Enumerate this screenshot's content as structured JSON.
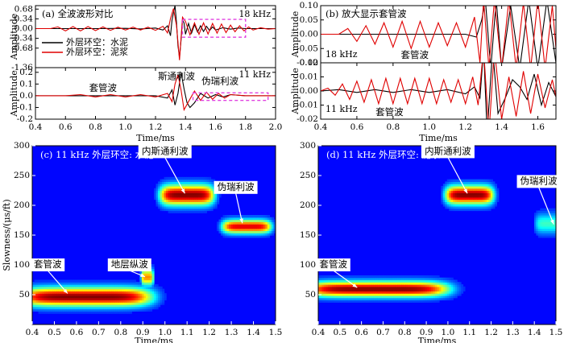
{
  "chart_data": [
    {
      "id": "a_top",
      "type": "line",
      "panel_label": "(a) 全波波形对比",
      "freq_label": "18 kHz",
      "ylabel": "Amplitude",
      "xlim": [
        0.4,
        2.0
      ],
      "ylim": [
        -1.36,
        0.8
      ],
      "yticks": [
        {
          "v": 0.68,
          "t": "0.68"
        },
        {
          "v": 0.34,
          "t": "0.34"
        },
        {
          "v": 0.0,
          "t": "0.00"
        },
        {
          "v": -0.34,
          "t": "-0.34"
        },
        {
          "v": -0.68,
          "t": "-0.68"
        },
        {
          "v": -1.36,
          "t": "-1.36"
        }
      ],
      "legend": [
        {
          "name": "外层环空：水泥",
          "color": "#000000"
        },
        {
          "name": "外层环空：泥浆",
          "color": "#e00000"
        }
      ],
      "highlight_box": {
        "x": [
          1.38,
          1.8
        ],
        "y": [
          -0.3,
          0.32
        ],
        "color": "#e040e0"
      },
      "series": [
        {
          "name": "外层环空：水泥",
          "color": "#000000",
          "x": [
            0.4,
            0.6,
            0.8,
            1.0,
            1.1,
            1.2,
            1.25,
            1.28,
            1.3,
            1.31,
            1.32,
            1.33,
            1.34,
            1.35,
            1.36,
            1.37,
            1.38,
            1.39,
            1.4,
            1.42,
            1.44,
            1.46,
            1.48,
            1.5,
            1.52,
            1.54,
            1.56,
            1.58,
            1.6,
            1.65,
            1.7,
            1.75,
            1.8,
            1.9,
            2.0
          ],
          "y": [
            0.0,
            0.0,
            0.0,
            0.01,
            -0.01,
            0.02,
            -0.05,
            0.1,
            -0.25,
            0.3,
            0.55,
            0.8,
            0.2,
            -0.6,
            -1.0,
            -0.4,
            0.3,
            0.2,
            -0.2,
            0.18,
            -0.16,
            0.14,
            -0.12,
            0.1,
            -0.1,
            0.08,
            -0.07,
            0.06,
            -0.05,
            0.03,
            -0.02,
            0.02,
            0.0,
            0.0,
            0.0
          ]
        },
        {
          "name": "外层环空：泥浆",
          "color": "#e00000",
          "x": [
            0.4,
            0.5,
            0.55,
            0.6,
            0.65,
            0.7,
            0.75,
            0.8,
            0.85,
            0.9,
            0.95,
            1.0,
            1.05,
            1.1,
            1.15,
            1.2,
            1.25,
            1.28,
            1.3,
            1.32,
            1.34,
            1.36,
            1.38,
            1.4,
            1.43,
            1.46,
            1.49,
            1.52,
            1.55,
            1.58,
            1.61,
            1.64,
            1.67,
            1.7,
            1.73,
            1.76,
            1.79,
            1.82,
            1.85,
            1.9,
            1.95,
            2.0
          ],
          "y": [
            0.0,
            0.0,
            0.06,
            -0.08,
            0.07,
            -0.08,
            0.07,
            -0.07,
            0.06,
            -0.06,
            0.05,
            -0.05,
            0.05,
            -0.05,
            0.05,
            -0.06,
            0.08,
            -0.15,
            0.35,
            0.7,
            0.1,
            -1.1,
            0.4,
            0.25,
            -0.22,
            0.2,
            -0.2,
            0.2,
            -0.19,
            0.18,
            -0.16,
            0.16,
            -0.14,
            0.12,
            -0.11,
            0.1,
            -0.08,
            0.06,
            -0.05,
            0.03,
            -0.02,
            0.0
          ]
        }
      ]
    },
    {
      "id": "a_bottom",
      "type": "line",
      "freq_label": "11 kHz",
      "ylabel": "Amplitude",
      "xlabel": "Time/ms",
      "xlim": [
        0.4,
        2.0
      ],
      "ylim": [
        -0.2,
        0.24
      ],
      "xticks": [
        0.4,
        0.6,
        0.8,
        1.0,
        1.2,
        1.4,
        1.6,
        1.8,
        2.0
      ],
      "xtick_labels": [
        "0.4",
        "0.6",
        "0.8",
        "1.0",
        "1.2",
        "1.4",
        "1.6",
        "1.8",
        "2.0"
      ],
      "yticks": [
        {
          "v": 0.2,
          "t": "0.2"
        },
        {
          "v": 0.1,
          "t": "0.1"
        },
        {
          "v": 0.0,
          "t": "0.0"
        },
        {
          "v": -0.1,
          "t": "-0.1"
        },
        {
          "v": -0.2,
          "t": "-0.2"
        }
      ],
      "annotations": [
        {
          "text": "套管波",
          "x": 0.85,
          "y": 0.06
        },
        {
          "text": "斯通利波",
          "x": 1.34,
          "y": 0.16
        },
        {
          "text": "伪瑞利波",
          "x": 1.63,
          "y": 0.12
        }
      ],
      "highlight_box": {
        "x": [
          1.45,
          1.95
        ],
        "y": [
          -0.04,
          0.025
        ],
        "color": "#e040e0"
      },
      "series": [
        {
          "name": "外层环空：水泥",
          "color": "#000000",
          "x": [
            0.4,
            1.0,
            1.2,
            1.28,
            1.31,
            1.33,
            1.35,
            1.37,
            1.39,
            1.41,
            1.43,
            1.46,
            1.5,
            1.55,
            1.6,
            1.65,
            1.7,
            1.8,
            2.0
          ],
          "y": [
            0.0,
            0.0,
            0.0,
            -0.02,
            0.05,
            -0.08,
            0.02,
            0.2,
            0.06,
            -0.06,
            -0.1,
            -0.06,
            0.02,
            -0.02,
            0.01,
            -0.01,
            0.01,
            0.0,
            0.0
          ]
        },
        {
          "name": "外层环空：泥浆",
          "color": "#e00000",
          "x": [
            0.4,
            0.6,
            0.7,
            0.8,
            0.9,
            1.0,
            1.1,
            1.2,
            1.28,
            1.31,
            1.33,
            1.35,
            1.37,
            1.39,
            1.42,
            1.46,
            1.5,
            1.54,
            1.58,
            1.62,
            1.66,
            1.7,
            1.8,
            2.0
          ],
          "y": [
            0.0,
            0.0,
            0.01,
            -0.01,
            0.01,
            -0.01,
            0.01,
            -0.01,
            0.02,
            -0.05,
            0.1,
            0.18,
            0.05,
            -0.12,
            -0.05,
            0.04,
            -0.04,
            0.03,
            -0.03,
            0.02,
            -0.02,
            0.01,
            0.0,
            0.0
          ]
        }
      ]
    },
    {
      "id": "b_top",
      "type": "line",
      "panel_label": "(b) 放大显示套管波",
      "freq_label": "18 kHz",
      "annotation": "套管波",
      "ylabel": "Amplitude",
      "xlim": [
        0.4,
        1.7
      ],
      "ylim": [
        -0.1,
        0.1
      ],
      "yticks": [
        {
          "v": 0.1,
          "t": "0.10"
        },
        {
          "v": 0.05,
          "t": "0.05"
        },
        {
          "v": 0.0,
          "t": "0.00"
        },
        {
          "v": -0.05,
          "t": "-0.05"
        },
        {
          "v": -0.1,
          "t": "-0.10"
        }
      ],
      "series": [
        {
          "name": "外层环空：水泥",
          "color": "#000000",
          "x": [
            0.4,
            1.0,
            1.2,
            1.26,
            1.29,
            1.31,
            1.34,
            1.37,
            1.4,
            1.45,
            1.5,
            1.55,
            1.6,
            1.65,
            1.7
          ],
          "y": [
            0.0,
            0.0,
            0.0,
            -0.01,
            0.05,
            0.12,
            -0.12,
            0.12,
            -0.12,
            0.1,
            -0.12,
            0.12,
            -0.12,
            0.12,
            -0.1
          ]
        },
        {
          "name": "外层环空：泥浆",
          "color": "#e00000",
          "x": [
            0.4,
            0.5,
            0.55,
            0.6,
            0.65,
            0.7,
            0.75,
            0.8,
            0.85,
            0.9,
            0.95,
            1.0,
            1.05,
            1.1,
            1.15,
            1.2,
            1.25,
            1.28,
            1.3,
            1.33,
            1.36,
            1.4,
            1.44,
            1.48,
            1.52,
            1.56,
            1.6,
            1.64,
            1.68,
            1.7
          ],
          "y": [
            0.0,
            0.0,
            0.02,
            -0.025,
            0.03,
            -0.035,
            0.04,
            -0.045,
            0.045,
            -0.05,
            0.045,
            -0.045,
            0.04,
            -0.04,
            0.04,
            -0.045,
            0.06,
            -0.1,
            0.12,
            -0.12,
            0.12,
            -0.12,
            0.12,
            -0.12,
            0.11,
            -0.12,
            0.12,
            -0.12,
            0.1,
            -0.05
          ]
        }
      ]
    },
    {
      "id": "b_bottom",
      "type": "line",
      "freq_label": "11 kHz",
      "annotation": "套管波",
      "ylabel": "Amplitude",
      "xlabel": "Time/ms",
      "xlim": [
        0.4,
        1.7
      ],
      "ylim": [
        -0.02,
        0.02
      ],
      "xticks": [
        0.4,
        0.6,
        0.8,
        1.0,
        1.2,
        1.4,
        1.6
      ],
      "xtick_labels": [
        "0.4",
        "0.6",
        "0.8",
        "1.0",
        "1.2",
        "1.4",
        "1.6"
      ],
      "yticks": [
        {
          "v": 0.02,
          "t": "0.02"
        },
        {
          "v": 0.01,
          "t": "0.01"
        },
        {
          "v": 0.0,
          "t": "0.00"
        },
        {
          "v": -0.01,
          "t": "-0.01"
        },
        {
          "v": -0.02,
          "t": "-0.02"
        }
      ],
      "series": [
        {
          "name": "外层环空：水泥",
          "color": "#000000",
          "x": [
            0.4,
            0.5,
            0.6,
            0.7,
            0.8,
            0.9,
            1.0,
            1.1,
            1.2,
            1.25,
            1.28,
            1.3,
            1.32,
            1.35,
            1.38,
            1.42,
            1.46,
            1.5,
            1.54,
            1.58,
            1.62,
            1.66,
            1.7
          ],
          "y": [
            0.0,
            0.001,
            -0.001,
            0.001,
            -0.001,
            0.001,
            -0.001,
            0.001,
            -0.002,
            0.003,
            -0.005,
            0.03,
            -0.03,
            0.03,
            -0.016,
            -0.005,
            0.008,
            0.003,
            -0.006,
            0.012,
            -0.01,
            0.006,
            -0.004
          ]
        },
        {
          "name": "外层环空：泥浆",
          "color": "#e00000",
          "x": [
            0.4,
            0.44,
            0.48,
            0.52,
            0.56,
            0.6,
            0.64,
            0.68,
            0.72,
            0.76,
            0.8,
            0.84,
            0.88,
            0.92,
            0.96,
            1.0,
            1.04,
            1.08,
            1.12,
            1.16,
            1.2,
            1.24,
            1.27,
            1.3,
            1.33,
            1.36,
            1.4,
            1.44,
            1.48,
            1.52,
            1.56,
            1.6,
            1.64,
            1.68,
            1.7
          ],
          "y": [
            0.0,
            0.002,
            -0.003,
            0.005,
            -0.006,
            0.007,
            -0.008,
            0.008,
            -0.009,
            0.009,
            -0.009,
            0.009,
            -0.009,
            0.009,
            -0.009,
            0.009,
            -0.009,
            0.008,
            -0.008,
            0.008,
            -0.009,
            0.01,
            -0.01,
            0.03,
            -0.03,
            0.03,
            -0.02,
            0.01,
            -0.018,
            0.014,
            -0.016,
            0.012,
            -0.012,
            0.008,
            -0.004
          ]
        }
      ]
    },
    {
      "id": "c",
      "type": "heatmap",
      "panel_label": "(c) 11 kHz 外层环空: 水泥",
      "xlabel": "Time/ms",
      "ylabel": "Slowness/(μs/ft)",
      "xlim": [
        0.4,
        1.5
      ],
      "ylim": [
        0,
        300
      ],
      "xticks": [
        0.4,
        0.5,
        0.6,
        0.7,
        0.8,
        0.9,
        1.0,
        1.1,
        1.2,
        1.3,
        1.4,
        1.5
      ],
      "xtick_labels": [
        "0.4",
        "0.5",
        "0.6",
        "0.7",
        "0.8",
        "0.9",
        "1.0",
        "1.1",
        "1.2",
        "1.3",
        "1.4",
        "1.5"
      ],
      "yticks": [
        {
          "v": 50,
          "t": "50"
        },
        {
          "v": 100,
          "t": "100"
        },
        {
          "v": 150,
          "t": "150"
        },
        {
          "v": 200,
          "t": "200"
        },
        {
          "v": 250,
          "t": "250"
        },
        {
          "v": 300,
          "t": "300"
        }
      ],
      "blobs": [
        {
          "x": 0.64,
          "y": 47,
          "sx": 0.27,
          "sy": 11,
          "a": 1.0
        },
        {
          "x": 0.92,
          "y": 80,
          "sx": 0.025,
          "sy": 10,
          "a": 0.7
        },
        {
          "x": 1.1,
          "y": 218,
          "sx": 0.11,
          "sy": 12,
          "a": 1.0
        },
        {
          "x": 1.37,
          "y": 165,
          "sx": 0.1,
          "sy": 8,
          "a": 0.9
        }
      ],
      "annotations": [
        {
          "text": "套管波",
          "tx": 0.47,
          "ty": 100,
          "ax": 0.56,
          "ay": 52
        },
        {
          "text": "地层纵波",
          "tx": 0.84,
          "ty": 100,
          "ax": 0.91,
          "ay": 80
        },
        {
          "text": "内斯通利波",
          "tx": 1.0,
          "ty": 290,
          "ax": 1.09,
          "ay": 220
        },
        {
          "text": "伪瑞利波",
          "tx": 1.32,
          "ty": 230,
          "ax": 1.35,
          "ay": 170
        }
      ]
    },
    {
      "id": "d",
      "type": "heatmap",
      "panel_label": "(d) 11 kHz 外层环空: 泥浆",
      "xlabel": "Time/ms",
      "ylabel": "",
      "xlim": [
        0.4,
        1.5
      ],
      "ylim": [
        0,
        300
      ],
      "xticks": [
        0.4,
        0.5,
        0.6,
        0.7,
        0.8,
        0.9,
        1.0,
        1.1,
        1.2,
        1.3,
        1.4,
        1.5
      ],
      "xtick_labels": [
        "0.4",
        "0.5",
        "0.6",
        "0.7",
        "0.8",
        "0.9",
        "1.0",
        "1.1",
        "1.2",
        "1.3",
        "1.4",
        "1.5"
      ],
      "yticks": [
        {
          "v": 50,
          "t": "50"
        },
        {
          "v": 100,
          "t": "100"
        },
        {
          "v": 150,
          "t": "150"
        },
        {
          "v": 200,
          "t": "200"
        },
        {
          "v": 250,
          "t": "250"
        },
        {
          "v": 300,
          "t": "300"
        }
      ],
      "blobs": [
        {
          "x": 0.67,
          "y": 60,
          "sx": 0.3,
          "sy": 9,
          "a": 1.0
        },
        {
          "x": 1.1,
          "y": 218,
          "sx": 0.1,
          "sy": 11,
          "a": 1.0
        },
        {
          "x": 1.47,
          "y": 170,
          "sx": 0.06,
          "sy": 12,
          "a": 0.35
        }
      ],
      "annotations": [
        {
          "text": "套管波",
          "tx": 0.47,
          "ty": 100,
          "ax": 0.58,
          "ay": 62
        },
        {
          "text": "内斯通利波",
          "tx": 1.0,
          "ty": 290,
          "ax": 1.09,
          "ay": 220
        },
        {
          "text": "伪瑞利波",
          "tx": 1.42,
          "ty": 240,
          "ax": 1.49,
          "ay": 168
        }
      ]
    }
  ]
}
